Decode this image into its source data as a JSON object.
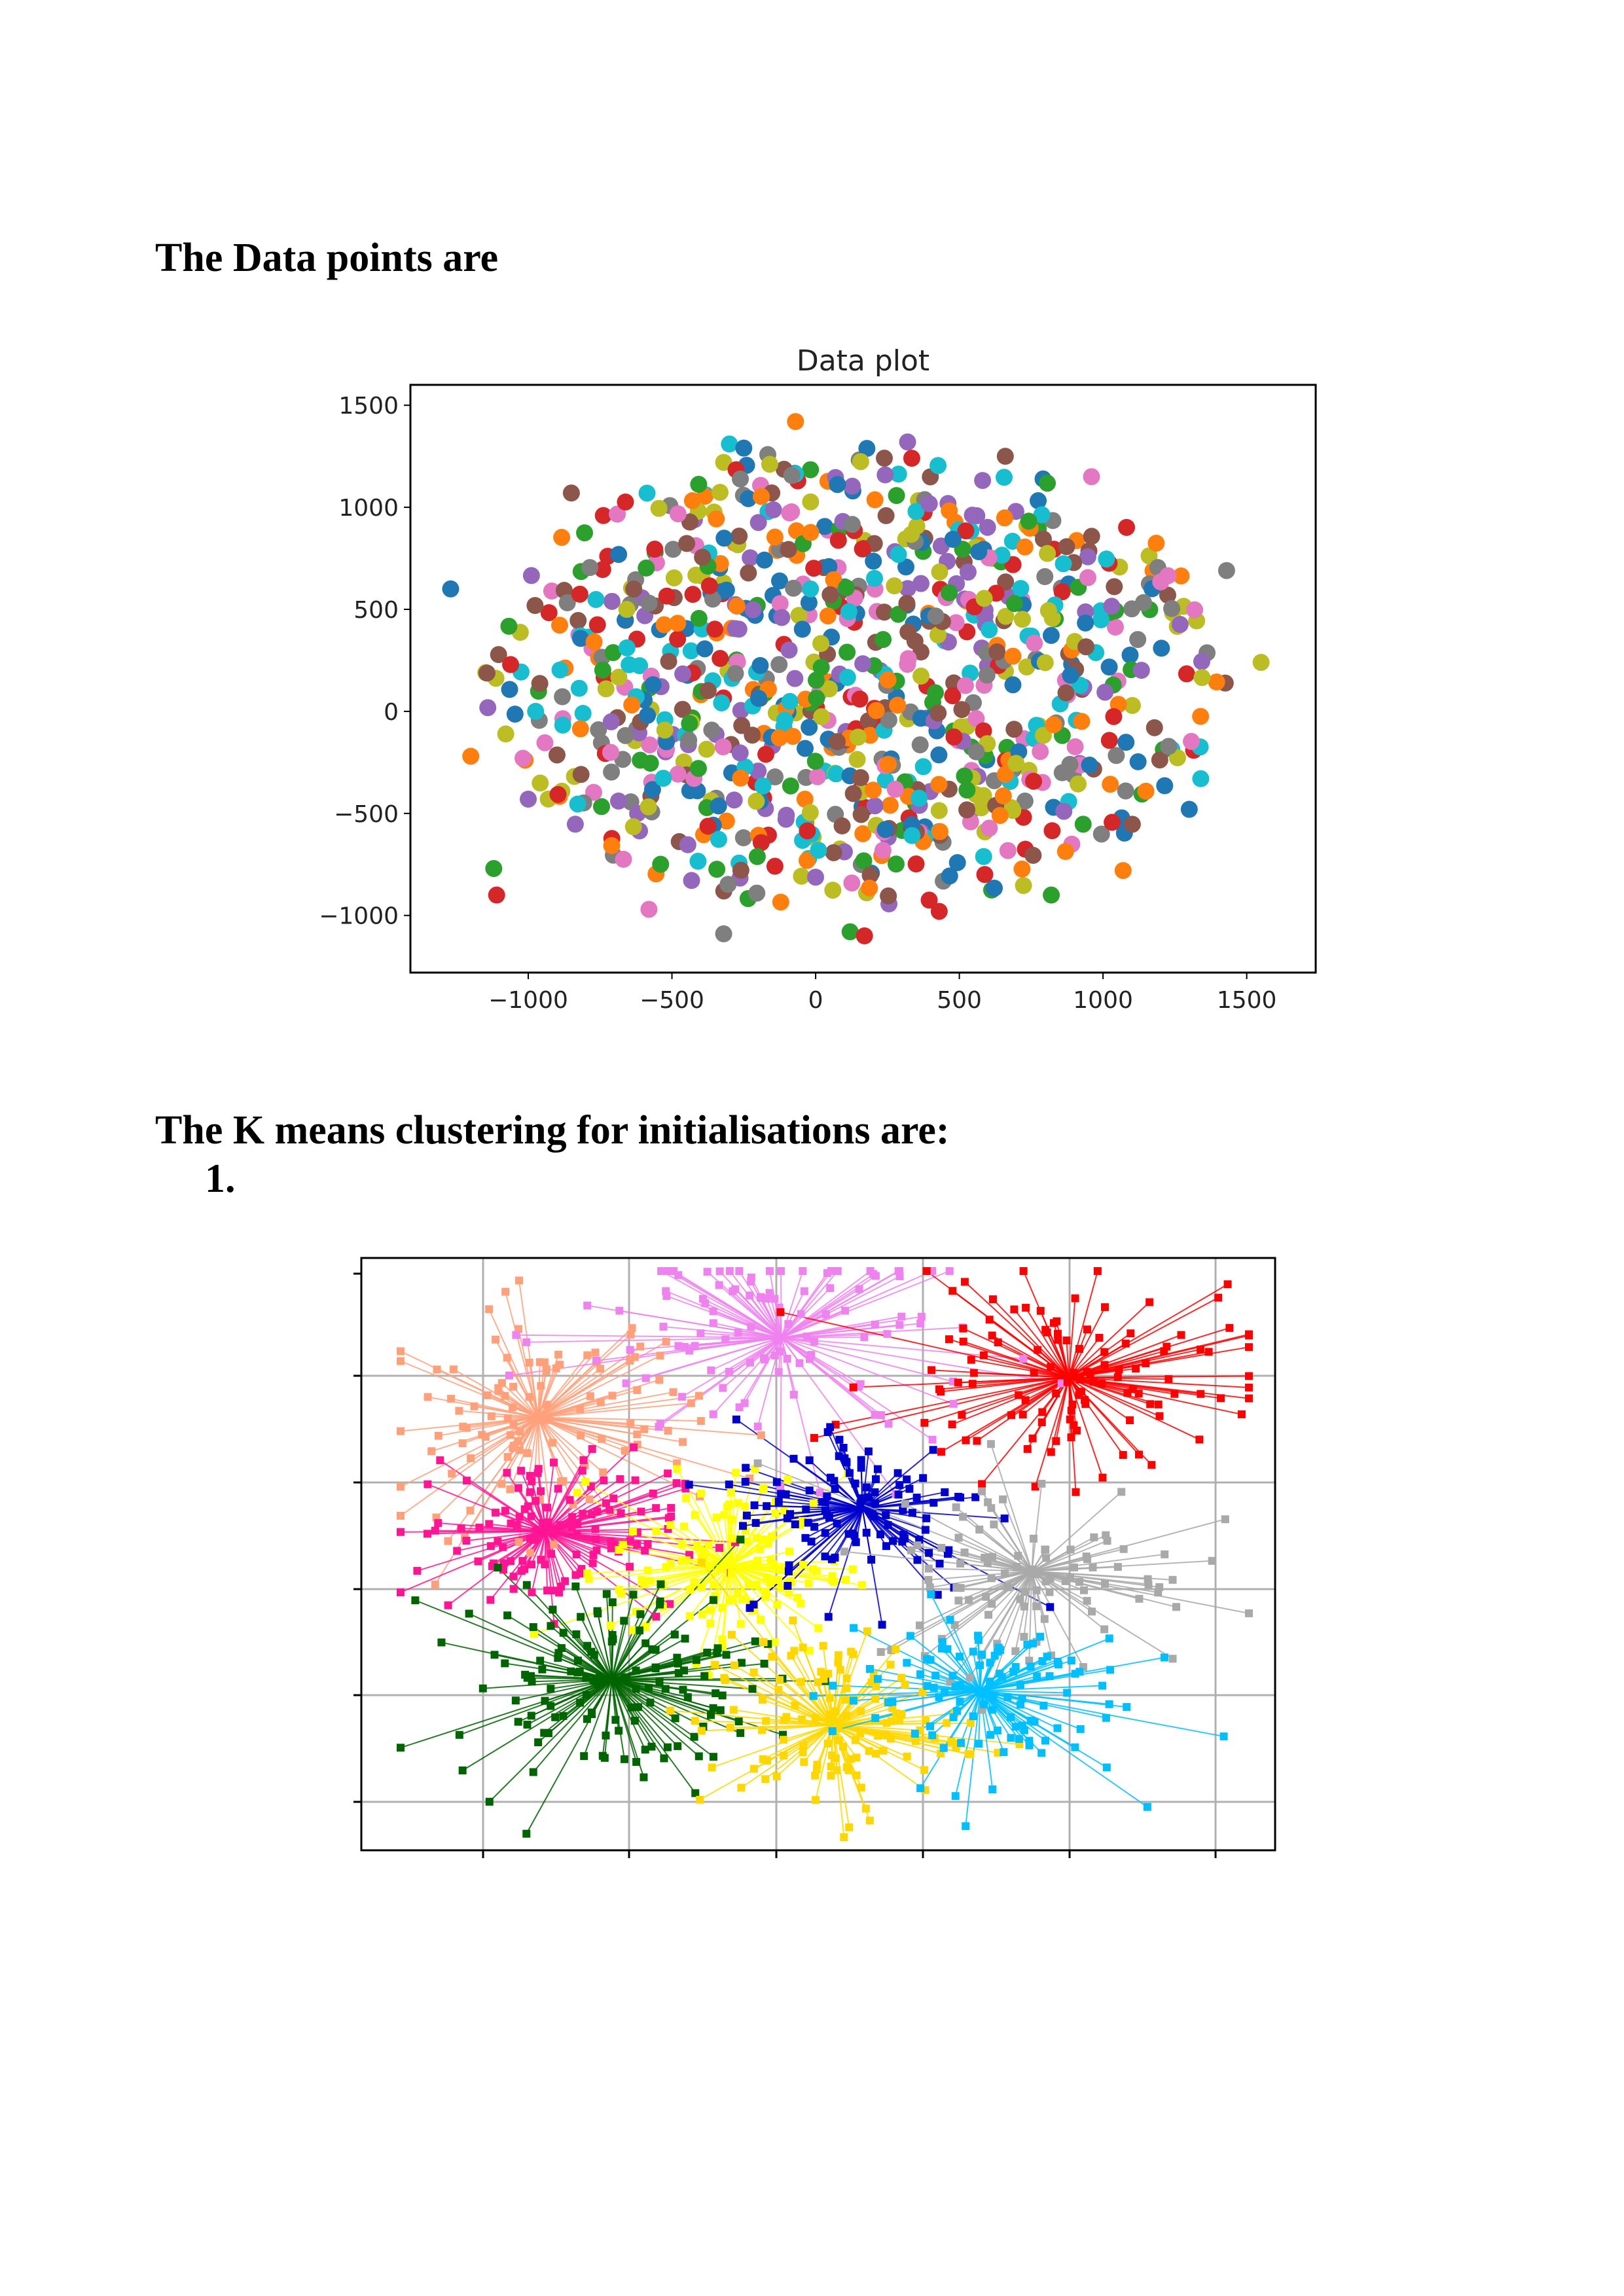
{
  "document": {
    "heading_data_points": "The Data points are",
    "heading_kmeans": "The K means clustering for initialisations are:",
    "list_item_1": "1."
  },
  "chart_data": [
    {
      "type": "scatter",
      "title": "Data plot",
      "xlabel": "",
      "ylabel": "",
      "xlim": [
        -1410,
        1740
      ],
      "ylim": [
        -1280,
        1600
      ],
      "xticks": [
        -1000,
        -500,
        0,
        500,
        1000,
        1500
      ],
      "xtick_labels": [
        "−1000",
        "−500",
        "0",
        "500",
        "1000",
        "1500"
      ],
      "yticks": [
        -1000,
        -500,
        0,
        500,
        1000,
        1500
      ],
      "ytick_labels": [
        "−1000",
        "−500",
        "0",
        "500",
        "1000",
        "1500"
      ],
      "grid": false,
      "legend": "none",
      "point_colors": [
        "#1f77b4",
        "#ff7f0e",
        "#2ca02c",
        "#d62728",
        "#9467bd",
        "#8c564b",
        "#e377c2",
        "#7f7f7f",
        "#bcbd22",
        "#17becf"
      ],
      "point_count": 900,
      "x_extent": [
        -1270,
        1550
      ],
      "y_extent": [
        -1110,
        1420
      ],
      "sample_points": [
        {
          "x": -1270,
          "y": 600
        },
        {
          "x": -1200,
          "y": -220
        },
        {
          "x": -1120,
          "y": -770
        },
        {
          "x": -1110,
          "y": -900
        },
        {
          "x": -1000,
          "y": -430
        },
        {
          "x": -850,
          "y": 1070
        },
        {
          "x": -580,
          "y": -970
        },
        {
          "x": -320,
          "y": -1090
        },
        {
          "x": -320,
          "y": 1220
        },
        {
          "x": -300,
          "y": 1310
        },
        {
          "x": -250,
          "y": 1290
        },
        {
          "x": -70,
          "y": 1420
        },
        {
          "x": 120,
          "y": -1080
        },
        {
          "x": 170,
          "y": -1100
        },
        {
          "x": 320,
          "y": 1320
        },
        {
          "x": 660,
          "y": 1250
        },
        {
          "x": 960,
          "y": 1150
        },
        {
          "x": 1430,
          "y": 690
        },
        {
          "x": 1550,
          "y": 240
        },
        {
          "x": 1340,
          "y": -330
        },
        {
          "x": 1300,
          "y": -480
        },
        {
          "x": 1070,
          "y": -780
        },
        {
          "x": 820,
          "y": -900
        },
        {
          "x": 430,
          "y": -980
        }
      ]
    },
    {
      "type": "scatter",
      "title": "",
      "xlabel": "",
      "ylabel": "",
      "grid": true,
      "legend": "none",
      "axis_tick_labels_shown": false,
      "num_clusters": 10,
      "clusters": [
        {
          "color": "#ffa07a",
          "center": [
            -1.3,
            1.7
          ],
          "spread": [
            0.55,
            0.5
          ],
          "points": 110
        },
        {
          "color": "#ee82ee",
          "center": [
            0.35,
            2.4
          ],
          "spread": [
            0.7,
            0.55
          ],
          "points": 110
        },
        {
          "color": "#ff0000",
          "center": [
            2.3,
            2.05
          ],
          "spread": [
            0.65,
            0.45
          ],
          "points": 120
        },
        {
          "color": "#ff1493",
          "center": [
            -1.25,
            0.7
          ],
          "spread": [
            0.45,
            0.35
          ],
          "points": 130
        },
        {
          "color": "#ffff00",
          "center": [
            0.0,
            0.4
          ],
          "spread": [
            0.4,
            0.4
          ],
          "points": 130
        },
        {
          "color": "#0000cd",
          "center": [
            0.9,
            0.9
          ],
          "spread": [
            0.45,
            0.4
          ],
          "points": 110
        },
        {
          "color": "#a9a9a9",
          "center": [
            2.05,
            0.35
          ],
          "spread": [
            0.55,
            0.45
          ],
          "points": 100
        },
        {
          "color": "#006400",
          "center": [
            -0.8,
            -0.6
          ],
          "spread": [
            0.55,
            0.45
          ],
          "points": 140
        },
        {
          "color": "#ffd700",
          "center": [
            0.7,
            -1.0
          ],
          "spread": [
            0.45,
            0.4
          ],
          "points": 130
        },
        {
          "color": "#00bfff",
          "center": [
            1.7,
            -0.7
          ],
          "spread": [
            0.5,
            0.4
          ],
          "points": 110
        }
      ]
    }
  ]
}
